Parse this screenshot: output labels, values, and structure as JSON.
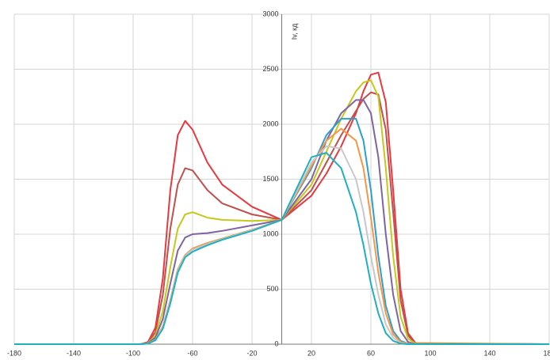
{
  "chart_data": {
    "type": "line",
    "y_label": "Iv, кд",
    "x": [
      -180,
      -95,
      -90,
      -85,
      -80,
      -75,
      -70,
      -65,
      -60,
      -50,
      -40,
      -20,
      0,
      20,
      30,
      40,
      50,
      55,
      60,
      65,
      70,
      75,
      80,
      85,
      90,
      180
    ],
    "series": [
      {
        "color": "#e8393f",
        "values": [
          0,
          0,
          20,
          150,
          600,
          1400,
          1900,
          2030,
          1950,
          1650,
          1450,
          1250,
          1130,
          1350,
          1550,
          1800,
          2100,
          2300,
          2450,
          2470,
          2200,
          1400,
          500,
          100,
          10,
          0
        ]
      },
      {
        "color": "#c0504d",
        "values": [
          0,
          0,
          15,
          110,
          450,
          1050,
          1450,
          1600,
          1580,
          1400,
          1280,
          1180,
          1130,
          1400,
          1650,
          1900,
          2120,
          2230,
          2290,
          2270,
          1950,
          1200,
          400,
          80,
          5,
          0
        ]
      },
      {
        "color": "#c6c81c",
        "values": [
          0,
          0,
          10,
          80,
          300,
          700,
          1050,
          1180,
          1200,
          1150,
          1130,
          1120,
          1130,
          1450,
          1750,
          2050,
          2300,
          2380,
          2400,
          2250,
          1600,
          800,
          250,
          50,
          5,
          0
        ]
      },
      {
        "color": "#8064a2",
        "values": [
          0,
          0,
          8,
          60,
          230,
          550,
          850,
          970,
          1000,
          1010,
          1030,
          1080,
          1130,
          1500,
          1850,
          2100,
          2220,
          2220,
          2100,
          1700,
          1000,
          450,
          120,
          20,
          0,
          0
        ]
      },
      {
        "color": "#2e9ecf",
        "values": [
          0,
          0,
          5,
          40,
          160,
          400,
          680,
          810,
          870,
          920,
          960,
          1040,
          1130,
          1600,
          1900,
          2050,
          2050,
          1850,
          1400,
          800,
          350,
          120,
          30,
          5,
          0,
          0
        ]
      },
      {
        "color": "#f79646",
        "values": [
          0,
          0,
          5,
          40,
          160,
          400,
          680,
          810,
          870,
          920,
          960,
          1040,
          1130,
          1620,
          1850,
          1960,
          1850,
          1600,
          1150,
          650,
          280,
          90,
          20,
          5,
          0,
          0
        ]
      },
      {
        "color": "#c8c8c8",
        "values": [
          0,
          0,
          5,
          38,
          150,
          390,
          670,
          800,
          860,
          910,
          955,
          1035,
          1130,
          1650,
          1800,
          1780,
          1500,
          1200,
          800,
          450,
          180,
          60,
          10,
          0,
          0,
          0
        ]
      },
      {
        "color": "#1fb0c0",
        "values": [
          0,
          0,
          5,
          35,
          140,
          370,
          650,
          790,
          840,
          900,
          950,
          1030,
          1130,
          1700,
          1740,
          1600,
          1200,
          900,
          550,
          280,
          100,
          30,
          5,
          0,
          0,
          0
        ]
      }
    ],
    "xlim": [
      -180,
      180
    ],
    "xticks": [
      -180,
      -140,
      -100,
      -60,
      -20,
      20,
      60,
      100,
      140,
      180
    ],
    "ylim": [
      0,
      3000
    ],
    "yticks": [
      0,
      500,
      1000,
      1500,
      2000,
      2500,
      3000
    ],
    "grid": true
  }
}
